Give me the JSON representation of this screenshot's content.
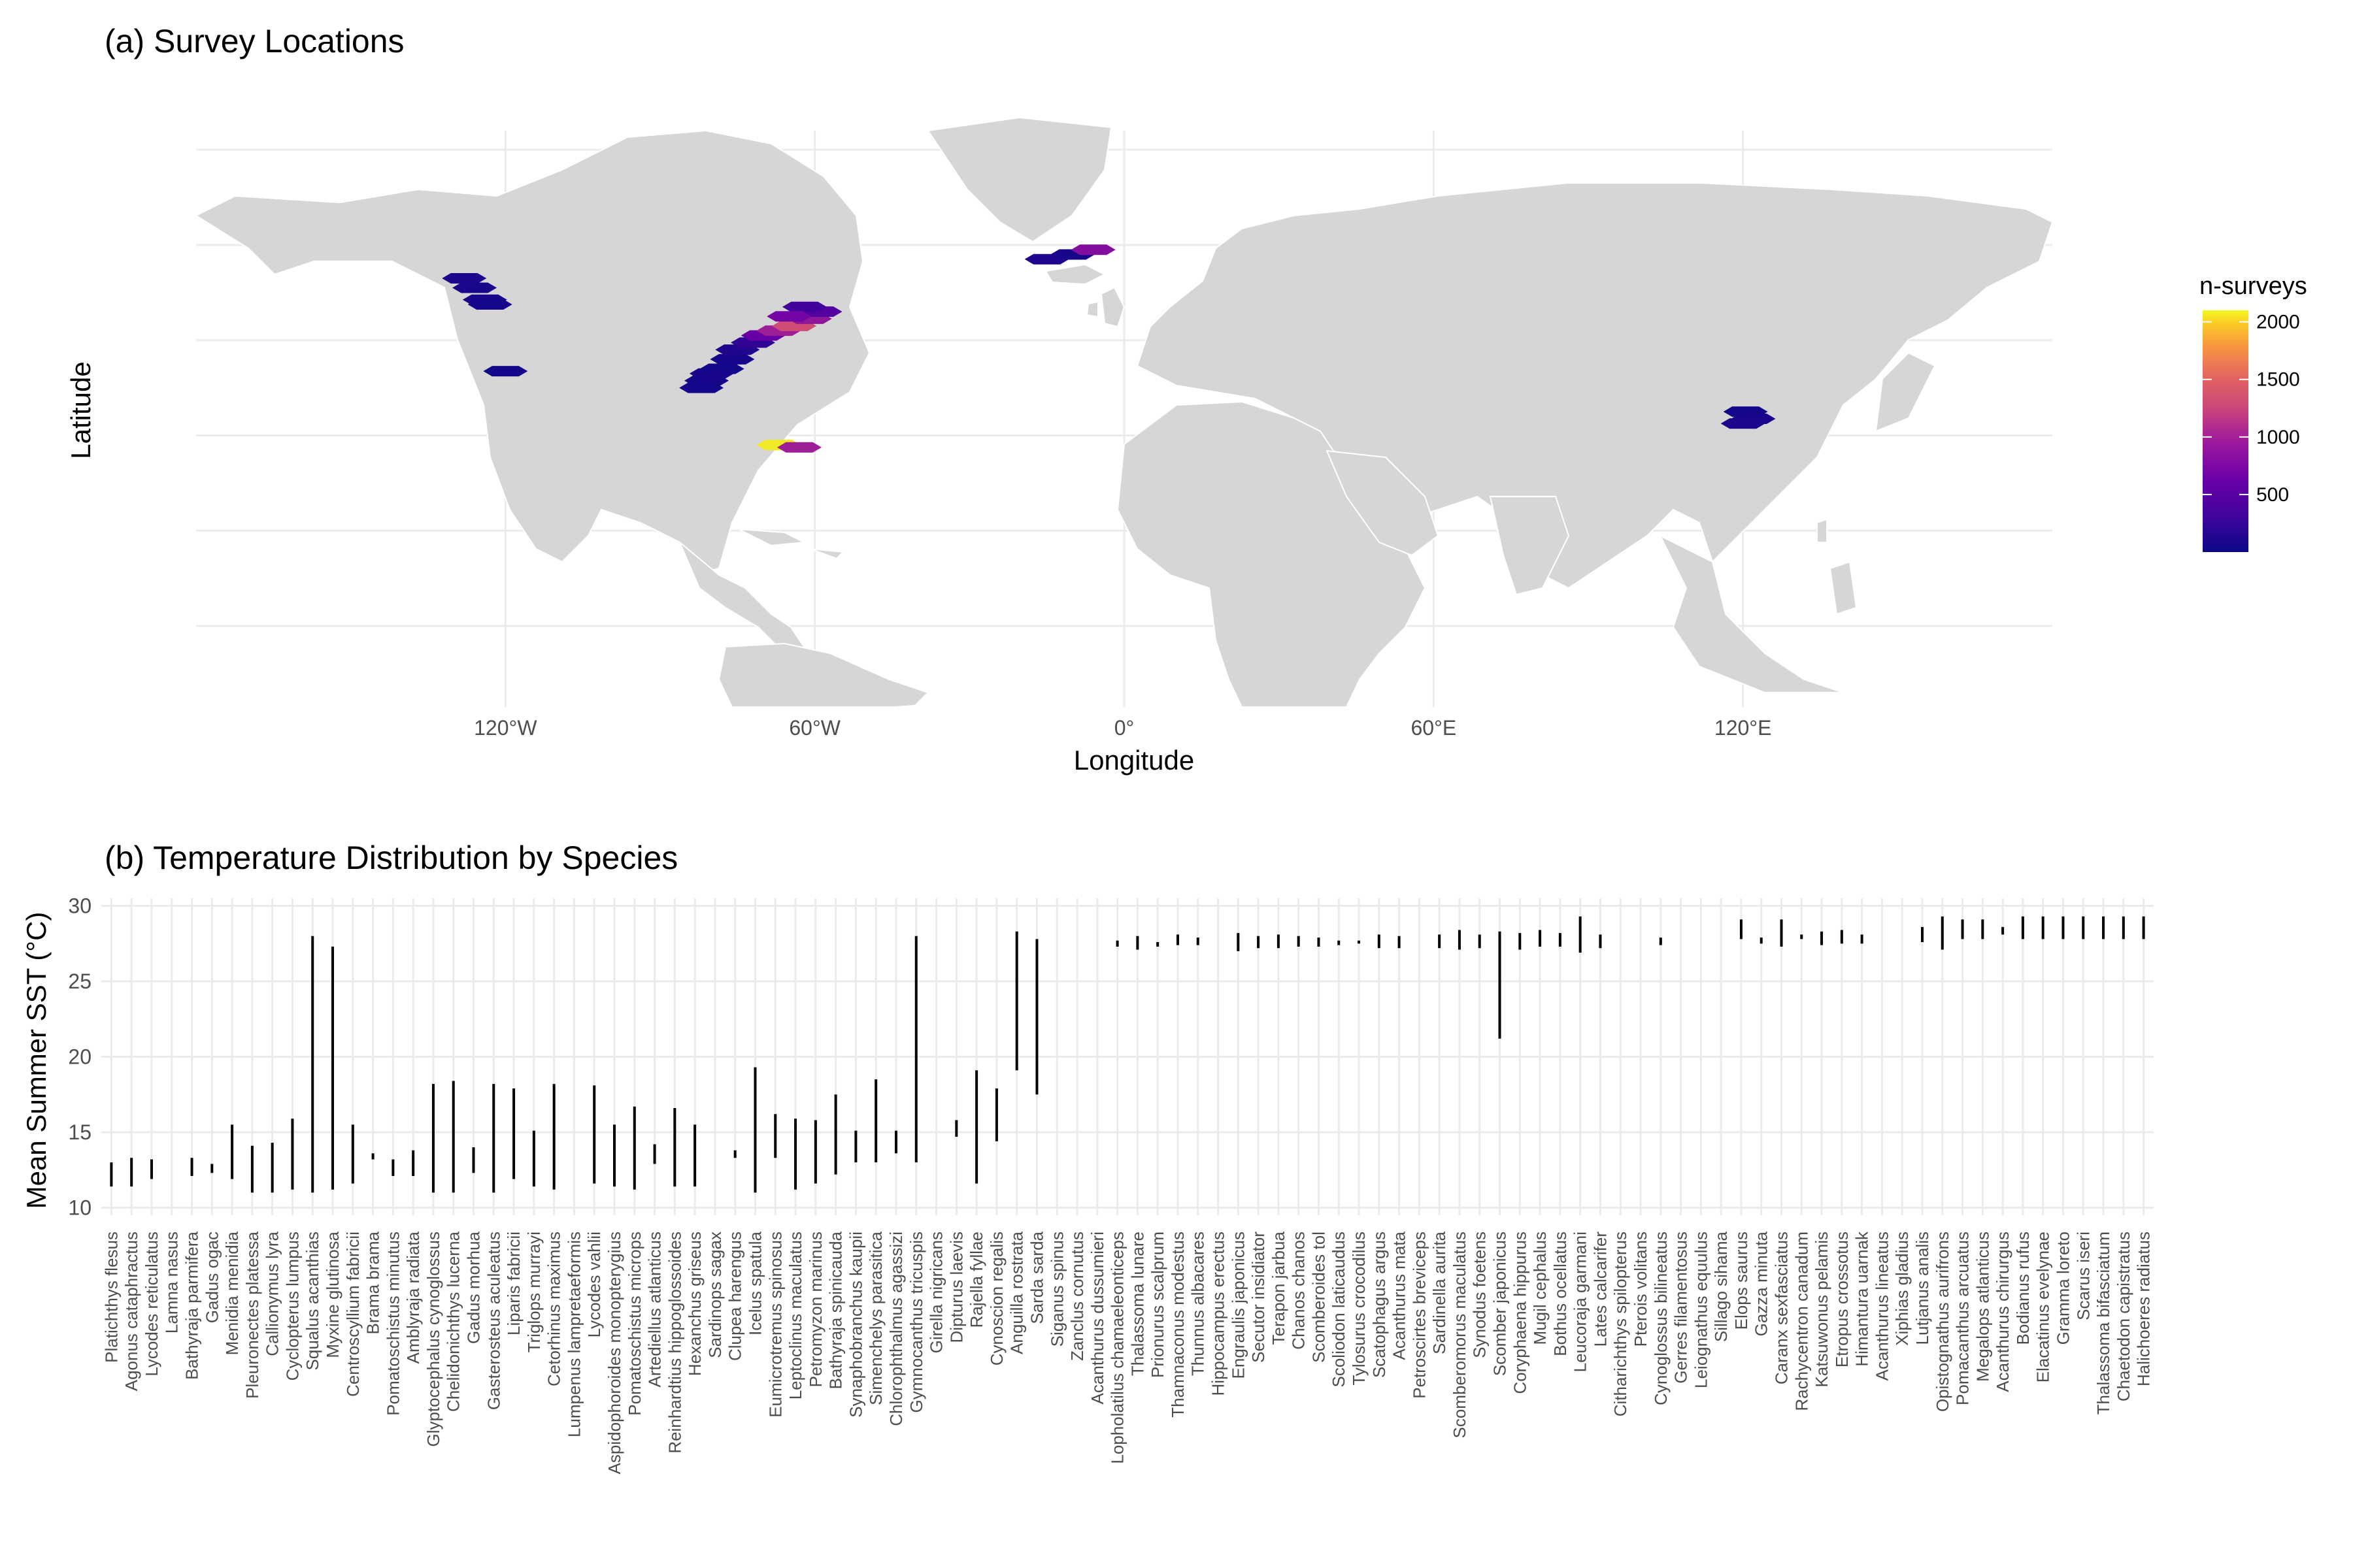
{
  "panel_a": {
    "title": "(a) Survey Locations",
    "xlabel": "Longitude",
    "ylabel": "Latitude",
    "legend_title": "n-surveys",
    "legend_ticks": [
      "2000",
      "1500",
      "1000",
      "500"
    ],
    "lon_ticks": [
      "120°W",
      "60°W",
      "0°",
      "60°E",
      "120°E"
    ],
    "colors": {
      "low": "#0d0887",
      "mid": "#cc4778",
      "high": "#f0f921",
      "land": "#d6d6d6"
    }
  },
  "panel_b": {
    "title": "(b) Temperature Distribution by Species",
    "ylabel": "Mean Summer SST (°C)",
    "y_ticks": [
      "10",
      "15",
      "20",
      "25",
      "30"
    ]
  },
  "chart_data": [
    {
      "type": "heatmap",
      "title": "(a) Survey Locations",
      "xlabel": "Longitude",
      "ylabel": "Latitude",
      "legend": {
        "title": "n-surveys",
        "range": [
          0,
          2100
        ],
        "ticks": [
          500,
          1000,
          1500,
          2000
        ],
        "placement": "right"
      },
      "xlim": [
        -180,
        180
      ],
      "ylim": [
        -37,
        84
      ],
      "x_ticks": [
        -120,
        -60,
        0,
        60,
        120
      ],
      "cells": [
        {
          "lon": -128,
          "lat": 53,
          "n": 80
        },
        {
          "lon": -126,
          "lat": 51,
          "n": 60
        },
        {
          "lon": -124,
          "lat": 48.5,
          "n": 70
        },
        {
          "lon": -123,
          "lat": 47.5,
          "n": 40
        },
        {
          "lon": -120,
          "lat": 33.5,
          "n": 30
        },
        {
          "lon": -82,
          "lat": 30,
          "n": 40
        },
        {
          "lon": -81,
          "lat": 31.5,
          "n": 40
        },
        {
          "lon": -80,
          "lat": 33,
          "n": 60
        },
        {
          "lon": -78,
          "lat": 34,
          "n": 40
        },
        {
          "lon": -76,
          "lat": 36,
          "n": 50
        },
        {
          "lon": -75,
          "lat": 38,
          "n": 100
        },
        {
          "lon": -72,
          "lat": 39.5,
          "n": 200
        },
        {
          "lon": -70,
          "lat": 41,
          "n": 500
        },
        {
          "lon": -67,
          "lat": 42,
          "n": 900
        },
        {
          "lon": -64,
          "lat": 43,
          "n": 1300
        },
        {
          "lon": -61,
          "lat": 44.5,
          "n": 800
        },
        {
          "lon": -59,
          "lat": 46,
          "n": 400
        },
        {
          "lon": -62,
          "lat": 47,
          "n": 300
        },
        {
          "lon": -65,
          "lat": 45,
          "n": 600
        },
        {
          "lon": -67,
          "lat": 18,
          "n": 2050
        },
        {
          "lon": -63,
          "lat": 17.5,
          "n": 900
        },
        {
          "lon": -15,
          "lat": 57,
          "n": 100
        },
        {
          "lon": -10,
          "lat": 58,
          "n": 60
        },
        {
          "lon": -6,
          "lat": 59,
          "n": 700
        },
        {
          "lon": 120.5,
          "lat": 25,
          "n": 40
        },
        {
          "lon": 122,
          "lat": 23.5,
          "n": 60
        },
        {
          "lon": 120,
          "lat": 22.5,
          "n": 80
        }
      ]
    },
    {
      "type": "range",
      "title": "(b) Temperature Distribution by Species",
      "ylabel": "Mean Summer SST (°C)",
      "ylim": [
        9.5,
        30.5
      ],
      "y_ticks": [
        10,
        15,
        20,
        25,
        30
      ],
      "categories": [
        "Platichthys flesus",
        "Agonus cataphractus",
        "Lycodes reticulatus",
        "Lamna nasus",
        "Bathyraja parmifera",
        "Gadus ogac",
        "Menidia menidia",
        "Pleuronectes platessa",
        "Callionymus lyra",
        "Cyclopterus lumpus",
        "Squalus acanthias",
        "Myxine glutinosa",
        "Centroscyllium fabricii",
        "Brama brama",
        "Pomatoschistus minutus",
        "Amblyraja radiata",
        "Glyptocephalus cynoglossus",
        "Chelidonichthys lucerna",
        "Gadus morhua",
        "Gasterosteus aculeatus",
        "Liparis fabricii",
        "Triglops murrayi",
        "Cetorhinus maximus",
        "Lumpenus lampretaeformis",
        "Lycodes vahlii",
        "Aspidophoroides monopterygius",
        "Pomatoschistus microps",
        "Artediellus atlanticus",
        "Reinhardtius hippoglossoides",
        "Hexanchus griseus",
        "Sardinops sagax",
        "Clupea harengus",
        "Icelus spatula",
        "Eumicrotremus spinosus",
        "Leptoclinus maculatus",
        "Petromyzon marinus",
        "Bathyraja spinicauda",
        "Synaphobranchus kaupii",
        "Simenchelys parasitica",
        "Chlorophthalmus agassizi",
        "Gymnocanthus tricuspis",
        "Girella nigricans",
        "Dipturus laevis",
        "Rajella fyllae",
        "Cynoscion regalis",
        "Anguilla rostrata",
        "Sarda sarda",
        "Siganus spinus",
        "Zanclus cornutus",
        "Acanthurus dussumieri",
        "Lopholatilus chamaeleonticeps",
        "Thalassoma lunare",
        "Prionurus scalprum",
        "Thamnaconus modestus",
        "Thunnus albacares",
        "Hippocampus erectus",
        "Engraulis japonicus",
        "Secutor insidiator",
        "Terapon jarbua",
        "Chanos chanos",
        "Scomberoides tol",
        "Scoliodon laticaudus",
        "Tylosurus crocodilus",
        "Scatophagus argus",
        "Acanthurus mata",
        "Petroscirtes breviceps",
        "Sardinella aurita",
        "Scomberomorus maculatus",
        "Synodus foetens",
        "Scomber japonicus",
        "Coryphaena hippurus",
        "Mugil cephalus",
        "Bothus ocellatus",
        "Leucoraja garmani",
        "Lates calcarifer",
        "Citharichthys spilopterus",
        "Pterois volitans",
        "Cynoglossus bilineatus",
        "Gerres filamentosus",
        "Leiognathus equulus",
        "Sillago sihama",
        "Elops saurus",
        "Gazza minuta",
        "Caranx sexfasciatus",
        "Rachycentron canadum",
        "Katsuwonus pelamis",
        "Etropus crossotus",
        "Himantura uarnak",
        "Acanthurus lineatus",
        "Xiphias gladius",
        "Lutjanus analis",
        "Opistognathus aurifrons",
        "Pomacanthus arcuatus",
        "Megalops atlanticus",
        "Acanthurus chirurgus",
        "Bodianus rufus",
        "Elacatinus evelynae",
        "Gramma loreto",
        "Scarus iseri",
        "Thalassoma bifasciatum",
        "Chaetodon capistratus",
        "Halichoeres radiatus"
      ],
      "ranges": [
        [
          11.4,
          13.0
        ],
        [
          11.4,
          13.3
        ],
        [
          11.9,
          13.2
        ],
        null,
        [
          12.1,
          13.3
        ],
        [
          12.3,
          12.9
        ],
        [
          11.9,
          15.5
        ],
        [
          11.0,
          14.1
        ],
        [
          11.0,
          14.3
        ],
        [
          11.2,
          15.9
        ],
        [
          11.0,
          28.0
        ],
        [
          11.2,
          27.3
        ],
        [
          11.6,
          15.5
        ],
        [
          13.2,
          13.6
        ],
        [
          12.1,
          13.2
        ],
        [
          12.1,
          13.8
        ],
        [
          11.0,
          18.2
        ],
        [
          11.0,
          18.4
        ],
        [
          12.3,
          14.0
        ],
        [
          11.0,
          18.2
        ],
        [
          11.9,
          17.9
        ],
        [
          11.4,
          15.1
        ],
        [
          11.2,
          18.2
        ],
        null,
        [
          11.6,
          18.1
        ],
        [
          11.4,
          15.5
        ],
        [
          11.2,
          16.7
        ],
        [
          12.9,
          14.2
        ],
        [
          11.4,
          16.6
        ],
        [
          11.4,
          15.5
        ],
        null,
        [
          13.3,
          13.8
        ],
        [
          11.0,
          19.3
        ],
        [
          13.3,
          16.2
        ],
        [
          11.2,
          15.9
        ],
        [
          11.6,
          15.8
        ],
        [
          12.2,
          17.5
        ],
        [
          13.0,
          15.1
        ],
        [
          13.0,
          18.5
        ],
        [
          13.6,
          15.1
        ],
        [
          13.0,
          28.0
        ],
        null,
        [
          14.7,
          15.8
        ],
        [
          11.6,
          19.1
        ],
        [
          14.4,
          17.9
        ],
        [
          19.1,
          28.3
        ],
        [
          17.5,
          27.8
        ],
        null,
        null,
        null,
        [
          27.3,
          27.7
        ],
        [
          27.1,
          28.0
        ],
        [
          27.3,
          27.6
        ],
        [
          27.4,
          28.1
        ],
        [
          27.4,
          27.9
        ],
        null,
        [
          27.0,
          28.2
        ],
        [
          27.2,
          28.0
        ],
        [
          27.2,
          28.1
        ],
        [
          27.3,
          28.0
        ],
        [
          27.3,
          27.9
        ],
        [
          27.4,
          27.7
        ],
        [
          27.5,
          27.7
        ],
        [
          27.2,
          28.1
        ],
        [
          27.2,
          28.0
        ],
        null,
        [
          27.2,
          28.1
        ],
        [
          27.1,
          28.4
        ],
        [
          27.2,
          28.1
        ],
        [
          21.2,
          28.3
        ],
        [
          27.1,
          28.2
        ],
        [
          27.3,
          28.4
        ],
        [
          27.3,
          28.2
        ],
        [
          26.9,
          29.3
        ],
        [
          27.2,
          28.1
        ],
        null,
        null,
        [
          27.4,
          27.9
        ],
        null,
        null,
        null,
        [
          27.8,
          29.1
        ],
        [
          27.5,
          27.9
        ],
        [
          27.3,
          29.1
        ],
        [
          27.8,
          28.1
        ],
        [
          27.4,
          28.3
        ],
        [
          27.5,
          28.4
        ],
        [
          27.5,
          28.1
        ],
        null,
        null,
        [
          27.6,
          28.6
        ],
        [
          27.1,
          29.3
        ],
        [
          27.8,
          29.1
        ],
        [
          27.8,
          29.1
        ],
        [
          28.1,
          28.6
        ],
        [
          27.8,
          29.3
        ],
        [
          27.8,
          29.3
        ],
        [
          27.8,
          29.3
        ],
        [
          27.8,
          29.3
        ],
        [
          27.8,
          29.3
        ],
        [
          27.8,
          29.3
        ],
        [
          27.8,
          29.3
        ]
      ]
    }
  ]
}
